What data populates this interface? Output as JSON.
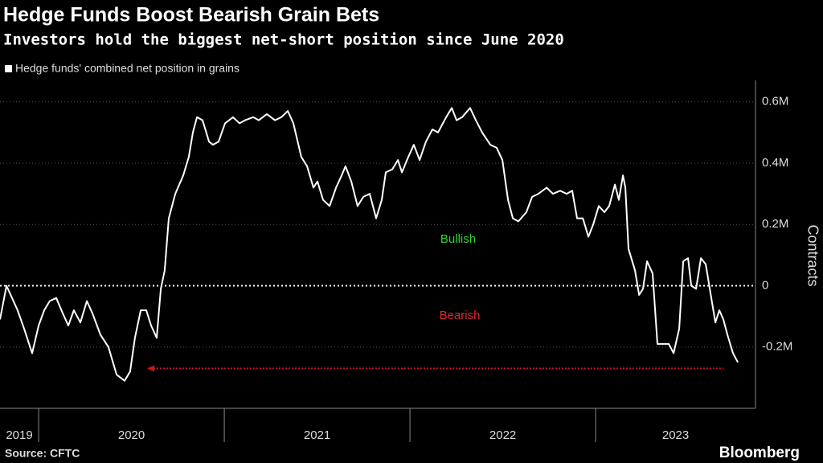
{
  "chart_data": {
    "type": "line",
    "title": "Hedge Funds Boost Bearish Grain Bets",
    "subtitle": "Investors hold the biggest net-short position since June 2020",
    "y_label": "Contracts",
    "source": "Source: CFTC",
    "brand": "Bloomberg",
    "x": [
      2019.792,
      2019.827,
      2019.857,
      2019.887,
      2019.922,
      2019.965,
      2020.0,
      2020.03,
      2020.06,
      2020.095,
      2020.13,
      2020.16,
      2020.19,
      2020.225,
      2020.26,
      2020.29,
      2020.333,
      2020.376,
      2020.42,
      2020.463,
      2020.493,
      2020.519,
      2020.55,
      2020.58,
      2020.606,
      2020.636,
      2020.658,
      2020.679,
      2020.701,
      2020.736,
      2020.779,
      2020.809,
      2020.831,
      2020.853,
      2020.883,
      2020.918,
      2020.939,
      2020.969,
      2021.004,
      2021.047,
      2021.082,
      2021.112,
      2021.156,
      2021.186,
      2021.229,
      2021.273,
      2021.307,
      2021.342,
      2021.372,
      2021.415,
      2021.446,
      2021.48,
      2021.502,
      2021.532,
      2021.567,
      2021.602,
      2021.632,
      2021.653,
      2021.684,
      2021.718,
      2021.749,
      2021.783,
      2021.818,
      2021.848,
      2021.87,
      2021.905,
      2021.935,
      2021.957,
      2021.991,
      2022.021,
      2022.052,
      2022.086,
      2022.121,
      2022.151,
      2022.195,
      2022.225,
      2022.251,
      2022.281,
      2022.324,
      2022.355,
      2022.389,
      2022.433,
      2022.467,
      2022.498,
      2022.528,
      2022.554,
      2022.584,
      2022.627,
      2022.658,
      2022.692,
      2022.736,
      2022.77,
      2022.809,
      2022.844,
      2022.874,
      2022.9,
      2022.931,
      2022.961,
      2022.987,
      2023.017,
      2023.047,
      2023.073,
      2023.104,
      2023.125,
      2023.147,
      2023.16,
      2023.177,
      2023.212,
      2023.234,
      2023.255,
      2023.277,
      2023.307,
      2023.333,
      2023.363,
      2023.394,
      2023.42,
      2023.45,
      2023.472,
      2023.498,
      2023.515,
      2023.541,
      2023.567,
      2023.593,
      2023.623,
      2023.645,
      2023.666,
      2023.688,
      2023.71,
      2023.74,
      2023.766
    ],
    "series": [
      {
        "name": "Hedge funds' combined net position in grains",
        "color": "#ffffff",
        "values": [
          -110000,
          0,
          -40000,
          -80000,
          -140000,
          -220000,
          -130000,
          -80000,
          -50000,
          -40000,
          -90000,
          -130000,
          -80000,
          -120000,
          -50000,
          -90000,
          -160000,
          -200000,
          -290000,
          -310000,
          -280000,
          -170000,
          -80000,
          -80000,
          -130000,
          -170000,
          -10000,
          50000,
          220000,
          300000,
          360000,
          420000,
          500000,
          550000,
          540000,
          470000,
          460000,
          470000,
          530000,
          550000,
          530000,
          540000,
          550000,
          540000,
          560000,
          540000,
          550000,
          570000,
          530000,
          420000,
          390000,
          320000,
          340000,
          280000,
          260000,
          320000,
          360000,
          390000,
          340000,
          260000,
          290000,
          300000,
          220000,
          280000,
          370000,
          380000,
          410000,
          370000,
          420000,
          460000,
          410000,
          470000,
          510000,
          500000,
          550000,
          580000,
          540000,
          550000,
          580000,
          540000,
          500000,
          460000,
          450000,
          410000,
          280000,
          220000,
          210000,
          240000,
          290000,
          300000,
          320000,
          300000,
          310000,
          300000,
          310000,
          220000,
          220000,
          160000,
          200000,
          260000,
          240000,
          260000,
          330000,
          280000,
          360000,
          320000,
          120000,
          50000,
          -30000,
          -10000,
          80000,
          40000,
          -190000,
          -190000,
          -190000,
          -220000,
          -140000,
          80000,
          90000,
          0,
          -10000,
          90000,
          70000,
          -40000,
          -120000,
          -80000,
          -110000,
          -160000,
          -220000,
          -250000
        ]
      }
    ],
    "xlim": [
      2019.792,
      2023.861
    ],
    "xticks": [
      {
        "value": 2019,
        "label": "2019"
      },
      {
        "value": 2020,
        "label": "2020"
      },
      {
        "value": 2021,
        "label": "2021"
      },
      {
        "value": 2022,
        "label": "2022"
      },
      {
        "value": 2023,
        "label": "2023"
      }
    ],
    "ylim": [
      -400000,
      670000
    ],
    "yticks": [
      {
        "value": -200000,
        "label": "-0.2M"
      },
      0,
      {
        "value": 200000,
        "label": "0.2M"
      },
      {
        "value": 400000,
        "label": "0.4M"
      },
      {
        "value": 600000,
        "label": "0.6M"
      }
    ],
    "grid": true,
    "zones": [
      {
        "text": "Bullish",
        "color": "#2fd62f"
      },
      {
        "text": "Bearish",
        "color": "#e3262d"
      }
    ],
    "reference_line": {
      "value": -270000,
      "x": [
        2020.584,
        2023.688
      ],
      "color": "#c8141e"
    }
  }
}
